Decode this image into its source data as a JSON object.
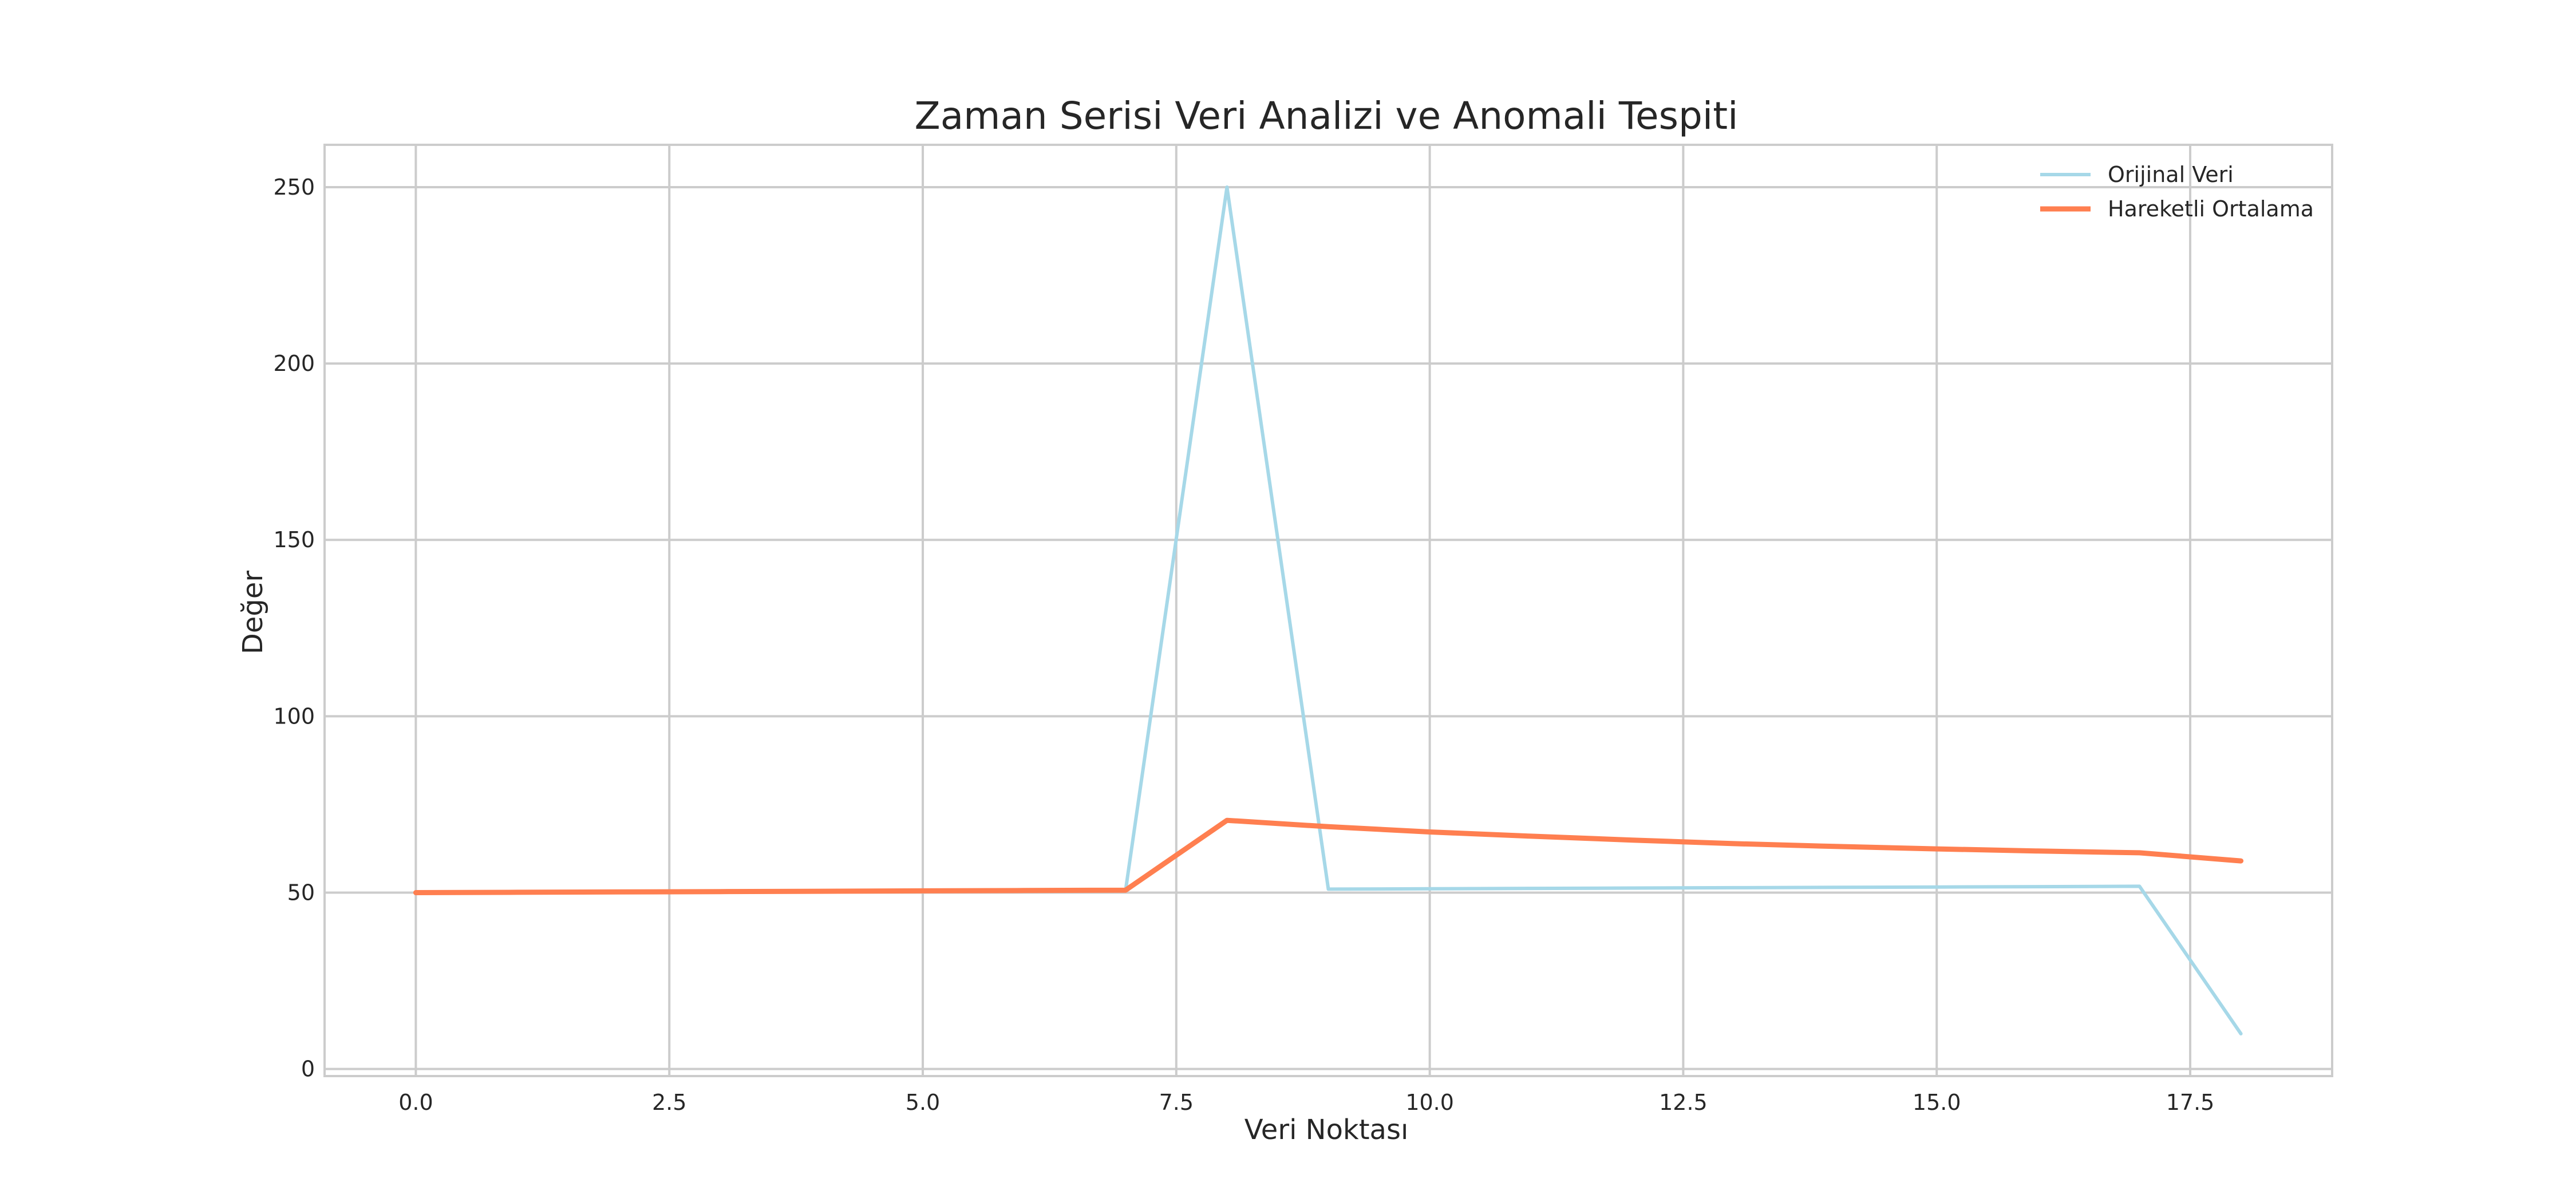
{
  "chart_data": {
    "type": "line",
    "title": "Zaman Serisi Veri Analizi ve Anomali Tespiti",
    "xlabel": "Veri Noktası",
    "ylabel": "Değer",
    "xlim": [
      -0.9,
      18.9
    ],
    "ylim": [
      -2,
      262
    ],
    "xticks": [
      0.0,
      2.5,
      5.0,
      7.5,
      10.0,
      12.5,
      15.0,
      17.5
    ],
    "xtick_labels": [
      "0.0",
      "2.5",
      "5.0",
      "7.5",
      "10.0",
      "12.5",
      "15.0",
      "17.5"
    ],
    "yticks": [
      0,
      50,
      100,
      150,
      200,
      250
    ],
    "ytick_labels": [
      "0",
      "50",
      "100",
      "150",
      "200",
      "250"
    ],
    "grid": true,
    "legend_position": "top-right",
    "series": [
      {
        "name": "Orijinal Veri",
        "color": "#a6d8e8",
        "x": [
          0,
          1,
          2,
          3,
          4,
          5,
          6,
          7,
          8,
          9,
          10,
          11,
          12,
          13,
          14,
          15,
          16,
          17,
          18
        ],
        "y": [
          50.0,
          50.1,
          50.2,
          50.3,
          50.4,
          50.5,
          50.6,
          50.7,
          250.0,
          51.0,
          51.1,
          51.2,
          51.3,
          51.4,
          51.5,
          51.6,
          51.7,
          51.8,
          10.0
        ]
      },
      {
        "name": "Hareketli Ortalama",
        "color": "#ff7f50",
        "x": [
          0,
          1,
          2,
          3,
          4,
          5,
          6,
          7,
          8,
          9,
          10,
          11,
          12,
          13,
          14,
          15,
          16,
          17,
          18
        ],
        "y": [
          50.0,
          50.1,
          50.2,
          50.3,
          50.4,
          50.5,
          50.6,
          50.7,
          70.5,
          68.7,
          67.2,
          66.0,
          64.9,
          63.9,
          63.1,
          62.4,
          61.8,
          61.3,
          59.0
        ]
      }
    ]
  }
}
